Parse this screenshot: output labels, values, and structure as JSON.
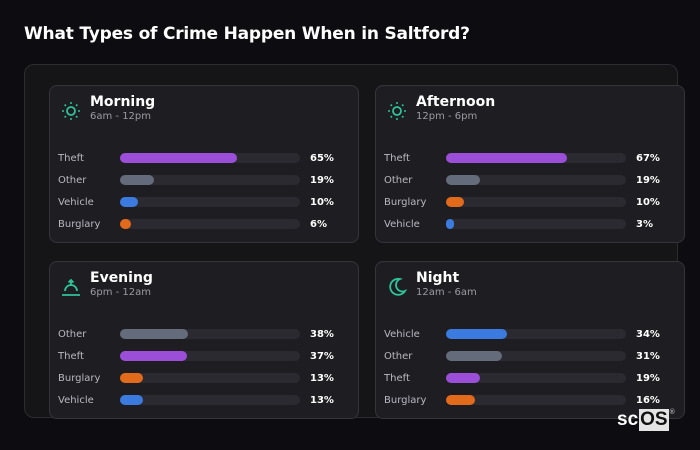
{
  "header": {
    "title": "What Types of Crime Happen When in Saltford?"
  },
  "colors": {
    "theft": "#9b4fd8",
    "other": "#646b7b",
    "vehicle": "#3b7be0",
    "burglary": "#e26a1b",
    "accent": "#2ec39a"
  },
  "cards": [
    {
      "title": "Morning",
      "subtitle": "6am - 12pm",
      "icon": "sun-icon",
      "rows": [
        {
          "label": "Theft",
          "value": "65%",
          "pct": 65,
          "color": "#9b4fd8"
        },
        {
          "label": "Other",
          "value": "19%",
          "pct": 19,
          "color": "#646b7b"
        },
        {
          "label": "Vehicle",
          "value": "10%",
          "pct": 10,
          "color": "#3b7be0"
        },
        {
          "label": "Burglary",
          "value": "6%",
          "pct": 6,
          "color": "#e26a1b"
        }
      ]
    },
    {
      "title": "Afternoon",
      "subtitle": "12pm - 6pm",
      "icon": "sun-icon",
      "rows": [
        {
          "label": "Theft",
          "value": "67%",
          "pct": 67,
          "color": "#9b4fd8"
        },
        {
          "label": "Other",
          "value": "19%",
          "pct": 19,
          "color": "#646b7b"
        },
        {
          "label": "Burglary",
          "value": "10%",
          "pct": 10,
          "color": "#e26a1b"
        },
        {
          "label": "Vehicle",
          "value": "3%",
          "pct": 3,
          "color": "#3b7be0"
        }
      ]
    },
    {
      "title": "Evening",
      "subtitle": "6pm - 12am",
      "icon": "sunset-icon",
      "rows": [
        {
          "label": "Other",
          "value": "38%",
          "pct": 38,
          "color": "#646b7b"
        },
        {
          "label": "Theft",
          "value": "37%",
          "pct": 37,
          "color": "#9b4fd8"
        },
        {
          "label": "Burglary",
          "value": "13%",
          "pct": 13,
          "color": "#e26a1b"
        },
        {
          "label": "Vehicle",
          "value": "13%",
          "pct": 13,
          "color": "#3b7be0"
        }
      ]
    },
    {
      "title": "Night",
      "subtitle": "12am - 6am",
      "icon": "moon-icon",
      "rows": [
        {
          "label": "Vehicle",
          "value": "34%",
          "pct": 34,
          "color": "#3b7be0"
        },
        {
          "label": "Other",
          "value": "31%",
          "pct": 31,
          "color": "#646b7b"
        },
        {
          "label": "Theft",
          "value": "19%",
          "pct": 19,
          "color": "#9b4fd8"
        },
        {
          "label": "Burglary",
          "value": "16%",
          "pct": 16,
          "color": "#e26a1b"
        }
      ]
    }
  ],
  "logo": {
    "sc": "sc",
    "os": "OS",
    "reg": "®"
  },
  "chart_data": [
    {
      "type": "bar",
      "title": "Morning",
      "subtitle": "6am - 12pm",
      "categories": [
        "Theft",
        "Other",
        "Vehicle",
        "Burglary"
      ],
      "values": [
        65,
        19,
        10,
        6
      ],
      "unit": "%",
      "xlim": [
        0,
        100
      ],
      "orientation": "horizontal"
    },
    {
      "type": "bar",
      "title": "Afternoon",
      "subtitle": "12pm - 6pm",
      "categories": [
        "Theft",
        "Other",
        "Burglary",
        "Vehicle"
      ],
      "values": [
        67,
        19,
        10,
        3
      ],
      "unit": "%",
      "xlim": [
        0,
        100
      ],
      "orientation": "horizontal"
    },
    {
      "type": "bar",
      "title": "Evening",
      "subtitle": "6pm - 12am",
      "categories": [
        "Other",
        "Theft",
        "Burglary",
        "Vehicle"
      ],
      "values": [
        38,
        37,
        13,
        13
      ],
      "unit": "%",
      "xlim": [
        0,
        100
      ],
      "orientation": "horizontal"
    },
    {
      "type": "bar",
      "title": "Night",
      "subtitle": "12am - 6am",
      "categories": [
        "Vehicle",
        "Other",
        "Theft",
        "Burglary"
      ],
      "values": [
        34,
        31,
        19,
        16
      ],
      "unit": "%",
      "xlim": [
        0,
        100
      ],
      "orientation": "horizontal"
    }
  ]
}
